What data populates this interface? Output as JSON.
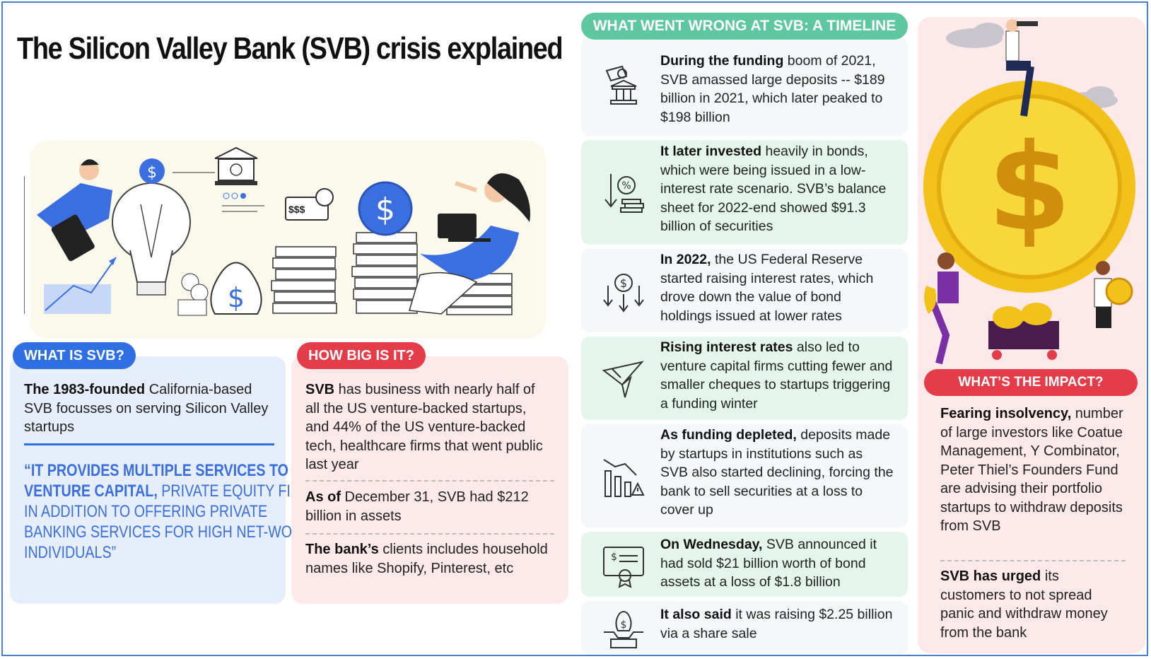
{
  "title": "The Silicon Valley Bank (SVB) crisis explained",
  "colors": {
    "blue_accent": "#2f6fe4",
    "red_accent": "#e53c49",
    "green_accent": "#5ec7a1",
    "blue_panel": "#e6eefb",
    "pink_panel": "#fde9ea",
    "green_row": "#e4f5ee",
    "light_row": "#f4f8f8",
    "gold": "#f3c21a"
  },
  "what_is_svb": {
    "label": "WHAT IS SVB?",
    "text_bold": "The 1983-founded",
    "text_rest": " California-based SVB focusses on serving Silicon Valley startups",
    "quote_bold": "“It provides multiple services to venture capital,",
    "quote_rest": " private equity firms in addition to offering private banking services for high net-worth individuals”"
  },
  "how_big": {
    "label": "HOW BIG IS IT?",
    "items": [
      {
        "bold": "SVB",
        "rest": " has business with nearly half of all the US venture-backed startups, and 44% of the US venture-backed tech, healthcare firms that went public last year"
      },
      {
        "bold": "As of",
        "rest": " December 31, SVB had $212 billion in assets"
      },
      {
        "bold": "The bank’s",
        "rest": " clients includes household names like Shopify, Pinterest, etc"
      }
    ]
  },
  "timeline": {
    "label": "WHAT WENT WRONG AT SVB: A TIMELINE",
    "items": [
      {
        "icon": "money-bank-icon",
        "bold": "During the funding",
        "rest": " boom of 2021, SVB amassed large deposits -- $189 billion in 2021, which later peaked to $198 billion"
      },
      {
        "icon": "percent-down-icon",
        "bold": "It later invested",
        "rest": " heavily in bonds, which were being issued in a low-interest rate scenario. SVB’s balance sheet for 2022-end showed $91.3 billion of securities"
      },
      {
        "icon": "dollar-arrows-down-icon",
        "bold": "In 2022,",
        "rest": " the US Federal Reserve started raising interest rates, which drove down the value of bond holdings issued at lower rates"
      },
      {
        "icon": "paper-plane-down-icon",
        "bold": "Rising interest rates",
        "rest": " also led to venture capital firms cutting fewer and smaller cheques to startups triggering a funding winter"
      },
      {
        "icon": "declining-chart-warning-icon",
        "bold": "As funding depleted,",
        "rest": " deposits made by startups in institutions such as SVB also started declining, forcing the bank to sell securities at a loss to cover up"
      },
      {
        "icon": "certificate-icon",
        "bold": "On Wednesday,",
        "rest": " SVB announced it had sold $21 billion worth of bond assets at a loss of $1.8 billion"
      },
      {
        "icon": "share-sale-icon",
        "bold": "It also said",
        "rest": " it was raising $2.25 billion via a share sale"
      }
    ]
  },
  "impact": {
    "label": "WHAT’S THE IMPACT?",
    "items": [
      {
        "bold": "Fearing insolvency,",
        "rest": " number of large investors like Coatue Management, Y Combinator, Peter Thiel’s Founders Fund are advising their portfolio startups to withdraw deposits from SVB"
      },
      {
        "bold": "SVB has urged",
        "rest": " its customers to not spread panic and withdraw money from the bank"
      }
    ]
  },
  "hero_illustration": {
    "bill_label": "$$$"
  }
}
